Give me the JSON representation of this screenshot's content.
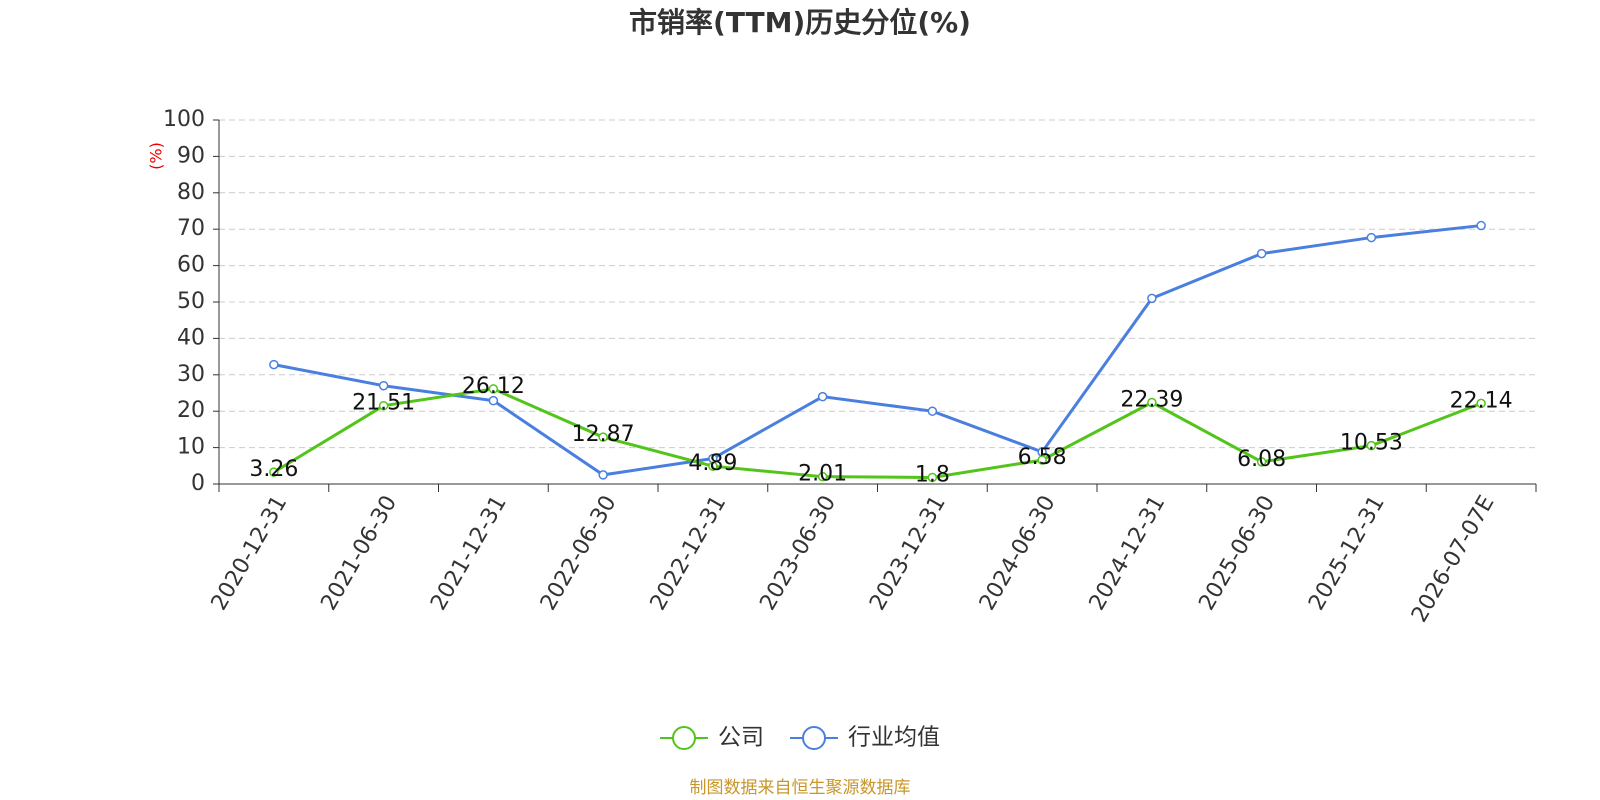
{
  "chart_data": {
    "type": "line",
    "title": "市销率(TTM)历史分位(%)",
    "y_label": "(%)",
    "categories": [
      "2020-12-31",
      "2021-06-30",
      "2021-12-31",
      "2022-06-30",
      "2022-12-31",
      "2023-06-30",
      "2023-12-31",
      "2024-06-30",
      "2024-12-31",
      "2025-06-30",
      "2025-12-31",
      "2026-07-07E"
    ],
    "series": [
      {
        "name": "公司",
        "color": "#52c41a",
        "values": [
          3.26,
          21.51,
          26.12,
          12.87,
          4.89,
          2.01,
          1.8,
          6.58,
          22.39,
          6.08,
          10.53,
          22.14
        ]
      },
      {
        "name": "行业均值",
        "color": "#4a7fe0",
        "values": [
          32.8,
          27.0,
          22.9,
          2.5,
          7.0,
          24.0,
          20.0,
          8.8,
          51.0,
          63.3,
          67.7,
          71.0
        ]
      }
    ],
    "ylim": [
      0,
      100
    ],
    "yticks": [
      0,
      10,
      20,
      30,
      40,
      50,
      60,
      70,
      80,
      90,
      100
    ],
    "grid": true,
    "legend_position": "bottom",
    "source": "制图数据来自恒生聚源数据库"
  }
}
